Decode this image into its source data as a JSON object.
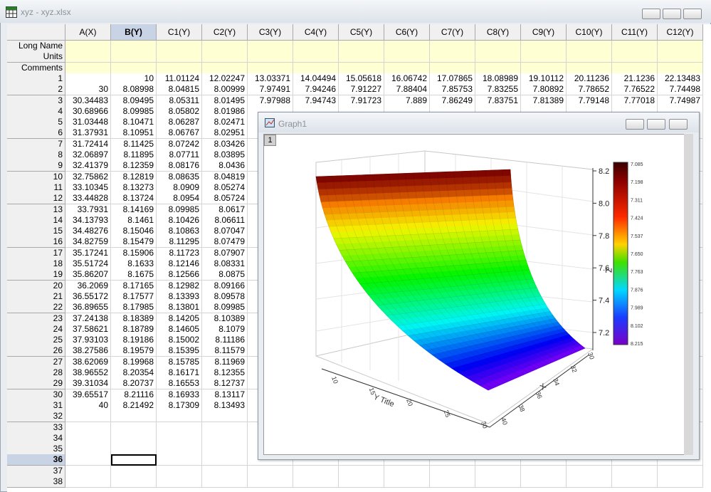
{
  "window": {
    "title": "xyz - xyz.xlsx"
  },
  "sheet": {
    "columns": [
      "A(X)",
      "B(Y)",
      "C1(Y)",
      "C2(Y)",
      "C3(Y)",
      "C4(Y)",
      "C5(Y)",
      "C6(Y)",
      "C7(Y)",
      "C8(Y)",
      "C9(Y)",
      "C10(Y)",
      "C11(Y)",
      "C12(Y)"
    ],
    "meta_rows": [
      "Long Name",
      "Units",
      "Comments"
    ],
    "row_labels": [
      "1",
      "2",
      "3",
      "4",
      "5",
      "6",
      "7",
      "8",
      "9",
      "10",
      "11",
      "12",
      "13",
      "14",
      "15",
      "16",
      "17",
      "18",
      "19",
      "20",
      "21",
      "22",
      "23",
      "24",
      "25",
      "26",
      "27",
      "28",
      "29",
      "30",
      "31",
      "32",
      "33",
      "34",
      "35",
      "36",
      "37",
      "38"
    ],
    "rows": [
      [
        null,
        "10",
        "11.01124",
        "12.02247",
        "13.03371",
        "14.04494",
        "15.05618",
        "16.06742",
        "17.07865",
        "18.08989",
        "19.10112",
        "20.11236",
        "21.1236",
        "22.13483"
      ],
      [
        "30",
        "8.08998",
        "8.04815",
        "8.00999",
        "7.97491",
        "7.94246",
        "7.91227",
        "7.88404",
        "7.85753",
        "7.83255",
        "7.80892",
        "7.78652",
        "7.76522",
        "7.74498"
      ],
      [
        "30.34483",
        "8.09495",
        "8.05311",
        "8.01495",
        "7.97988",
        "7.94743",
        "7.91723",
        "7.889",
        "7.86249",
        "7.83751",
        "7.81389",
        "7.79148",
        "7.77018",
        "7.74987"
      ],
      [
        "30.68966",
        "8.09985",
        "8.05802",
        "8.01986"
      ],
      [
        "31.03448",
        "8.10471",
        "8.06287",
        "8.02471"
      ],
      [
        "31.37931",
        "8.10951",
        "8.06767",
        "8.02951"
      ],
      [
        "31.72414",
        "8.11425",
        "8.07242",
        "8.03426"
      ],
      [
        "32.06897",
        "8.11895",
        "8.07711",
        "8.03895"
      ],
      [
        "32.41379",
        "8.12359",
        "8.08176",
        "8.0436"
      ],
      [
        "32.75862",
        "8.12819",
        "8.08635",
        "8.04819"
      ],
      [
        "33.10345",
        "8.13273",
        "8.0909",
        "8.05274"
      ],
      [
        "33.44828",
        "8.13724",
        "8.0954",
        "8.05724"
      ],
      [
        "33.7931",
        "8.14169",
        "8.09985",
        "8.0617"
      ],
      [
        "34.13793",
        "8.1461",
        "8.10426",
        "8.06611"
      ],
      [
        "34.48276",
        "8.15046",
        "8.10863",
        "8.07047"
      ],
      [
        "34.82759",
        "8.15479",
        "8.11295",
        "8.07479"
      ],
      [
        "35.17241",
        "8.15906",
        "8.11723",
        "8.07907"
      ],
      [
        "35.51724",
        "8.1633",
        "8.12146",
        "8.08331"
      ],
      [
        "35.86207",
        "8.1675",
        "8.12566",
        "8.0875"
      ],
      [
        "36.2069",
        "8.17165",
        "8.12982",
        "8.09166"
      ],
      [
        "36.55172",
        "8.17577",
        "8.13393",
        "8.09578"
      ],
      [
        "36.89655",
        "8.17985",
        "8.13801",
        "8.09985"
      ],
      [
        "37.24138",
        "8.18389",
        "8.14205",
        "8.10389"
      ],
      [
        "37.58621",
        "8.18789",
        "8.14605",
        "8.1079"
      ],
      [
        "37.93103",
        "8.19186",
        "8.15002",
        "8.11186"
      ],
      [
        "38.27586",
        "8.19579",
        "8.15395",
        "8.11579"
      ],
      [
        "38.62069",
        "8.19968",
        "8.15785",
        "8.11969"
      ],
      [
        "38.96552",
        "8.20354",
        "8.16171",
        "8.12355"
      ],
      [
        "39.31034",
        "8.20737",
        "8.16553",
        "8.12737"
      ],
      [
        "39.65517",
        "8.21116",
        "8.16933",
        "8.13117"
      ],
      [
        "40",
        "8.21492",
        "8.17309",
        "8.13493"
      ]
    ]
  },
  "graph": {
    "title": "Graph1",
    "layer": "1",
    "z_axis_label": "Z",
    "y_axis_label": "Y Title",
    "x_axis_label": "X",
    "z_ticks": [
      "8.2",
      "8.0",
      "7.8",
      "7.6",
      "7.4",
      "7.2"
    ],
    "y_ticks": [
      "10",
      "15",
      "20",
      "25",
      "30"
    ],
    "x_ticks": [
      "30",
      "32",
      "34",
      "36",
      "38",
      "40"
    ],
    "colorbar_labels": [
      "7.085",
      "7.198",
      "7.311",
      "7.424",
      "7.537",
      "7.650",
      "7.763",
      "7.876",
      "7.989",
      "8.102",
      "8.215"
    ]
  }
}
